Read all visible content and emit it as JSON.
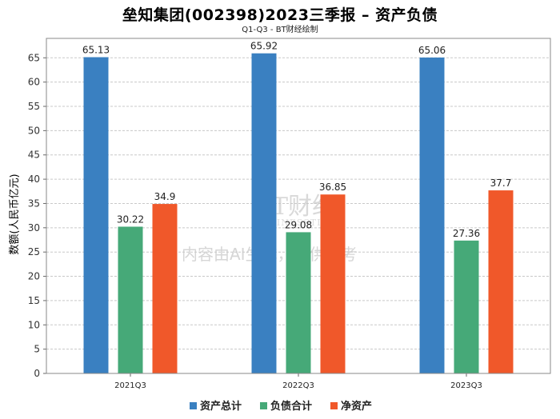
{
  "header": {
    "title": "垒知集团(002398)2023三季报 – 资产负债",
    "subtitle": "Q1-Q3 - BT财经绘制"
  },
  "watermark": {
    "brand": "BT财经",
    "brand_en": "BUSINESSTIMES",
    "notice": "内容由AI生成，仅供参考"
  },
  "colors": {
    "series": [
      "#3a80c1",
      "#46a978",
      "#f0582a"
    ],
    "grid": "#c8c8c8",
    "axis": "#888888"
  },
  "chart_data": {
    "type": "bar",
    "title": "垒知集团(002398)2023三季报 – 资产负债",
    "subtitle": "Q1-Q3 - BT财经绘制",
    "xlabel": "",
    "ylabel": "数额(人民币亿元)",
    "ylim": [
      0,
      69
    ],
    "yticks": [
      0,
      5,
      10,
      15,
      20,
      25,
      30,
      35,
      40,
      45,
      50,
      55,
      60,
      65
    ],
    "grid": true,
    "legend_position": "bottom",
    "categories": [
      "2021Q3",
      "2022Q3",
      "2023Q3"
    ],
    "series": [
      {
        "name": "资产总计",
        "values": [
          65.13,
          65.92,
          65.06
        ],
        "labels": [
          "65.13",
          "65.92",
          "65.06"
        ]
      },
      {
        "name": "负债合计",
        "values": [
          30.22,
          29.08,
          27.36
        ],
        "labels": [
          "30.22",
          "29.08",
          "27.36"
        ]
      },
      {
        "name": "净资产",
        "values": [
          34.9,
          36.85,
          37.7
        ],
        "labels": [
          "34.9",
          "36.85",
          "37.7"
        ]
      }
    ]
  }
}
